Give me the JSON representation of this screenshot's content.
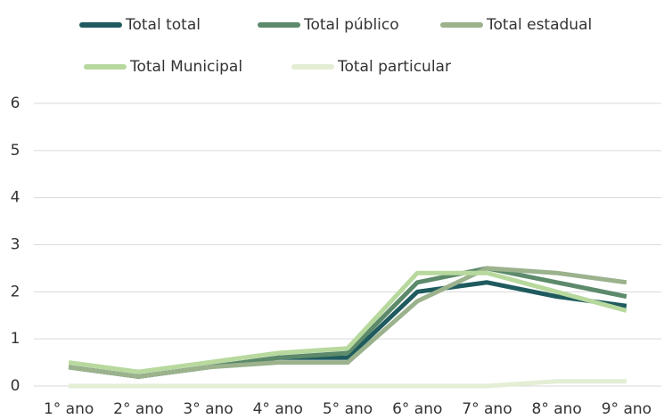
{
  "chart_data": {
    "type": "line",
    "categories": [
      "1° ano",
      "2° ano",
      "3° ano",
      "4° ano",
      "5° ano",
      "6° ano",
      "7° ano",
      "8° ano",
      "9° ano"
    ],
    "series": [
      {
        "name": "Total total",
        "color": "#1f5b5e",
        "values": [
          0.4,
          0.2,
          0.4,
          0.6,
          0.6,
          2.0,
          2.2,
          1.9,
          1.7
        ]
      },
      {
        "name": "Total público",
        "color": "#5c8a6b",
        "values": [
          0.4,
          0.2,
          0.4,
          0.6,
          0.7,
          2.2,
          2.5,
          2.2,
          1.9
        ]
      },
      {
        "name": "Total estadual",
        "color": "#9bb28d",
        "values": [
          0.4,
          0.2,
          0.4,
          0.5,
          0.5,
          1.8,
          2.5,
          2.4,
          2.2
        ]
      },
      {
        "name": "Total Municipal",
        "color": "#b8d99e",
        "values": [
          0.5,
          0.3,
          0.5,
          0.7,
          0.8,
          2.4,
          2.4,
          2.0,
          1.6
        ]
      },
      {
        "name": "Total particular",
        "color": "#e3eed4",
        "values": [
          0,
          0,
          0,
          0,
          0,
          0,
          0,
          0.1,
          0.1
        ]
      }
    ],
    "ylim": [
      0,
      6
    ],
    "yticks": [
      0,
      1,
      2,
      3,
      4,
      5,
      6
    ],
    "grid": true
  }
}
